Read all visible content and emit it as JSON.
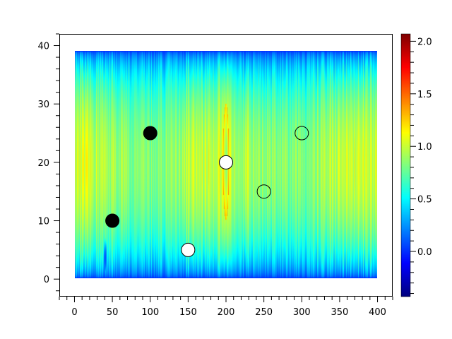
{
  "chart_data": {
    "type": "heatmap",
    "title": "",
    "xlabel": "",
    "ylabel": "",
    "xlim": [
      -20,
      420
    ],
    "ylim": [
      -3,
      42
    ],
    "field_extent": {
      "x": [
        0,
        400
      ],
      "y": [
        0,
        39
      ]
    },
    "x_ticks": [
      "0",
      "50",
      "100",
      "150",
      "200",
      "250",
      "300",
      "350",
      "400"
    ],
    "y_ticks": [
      "0",
      "10",
      "20",
      "30",
      "40"
    ],
    "colormap": "jet",
    "color_range": [
      -0.43,
      2.07
    ],
    "colorbar_ticks": [
      "0.0",
      "0.5",
      "1.0",
      "1.5",
      "2.0"
    ],
    "grid": false,
    "description_values": {
      "center_value": 1.0,
      "edge_value": 0.0
    },
    "markers": [
      {
        "x": 50,
        "y": 10,
        "fill": "#000000"
      },
      {
        "x": 100,
        "y": 25,
        "fill": "#000000"
      },
      {
        "x": 150,
        "y": 5,
        "fill": "#ffffff"
      },
      {
        "x": 200,
        "y": 20,
        "fill": "#ffffff"
      },
      {
        "x": 250,
        "y": 15,
        "fill": "none"
      },
      {
        "x": 300,
        "y": 25,
        "fill": "none"
      }
    ]
  }
}
